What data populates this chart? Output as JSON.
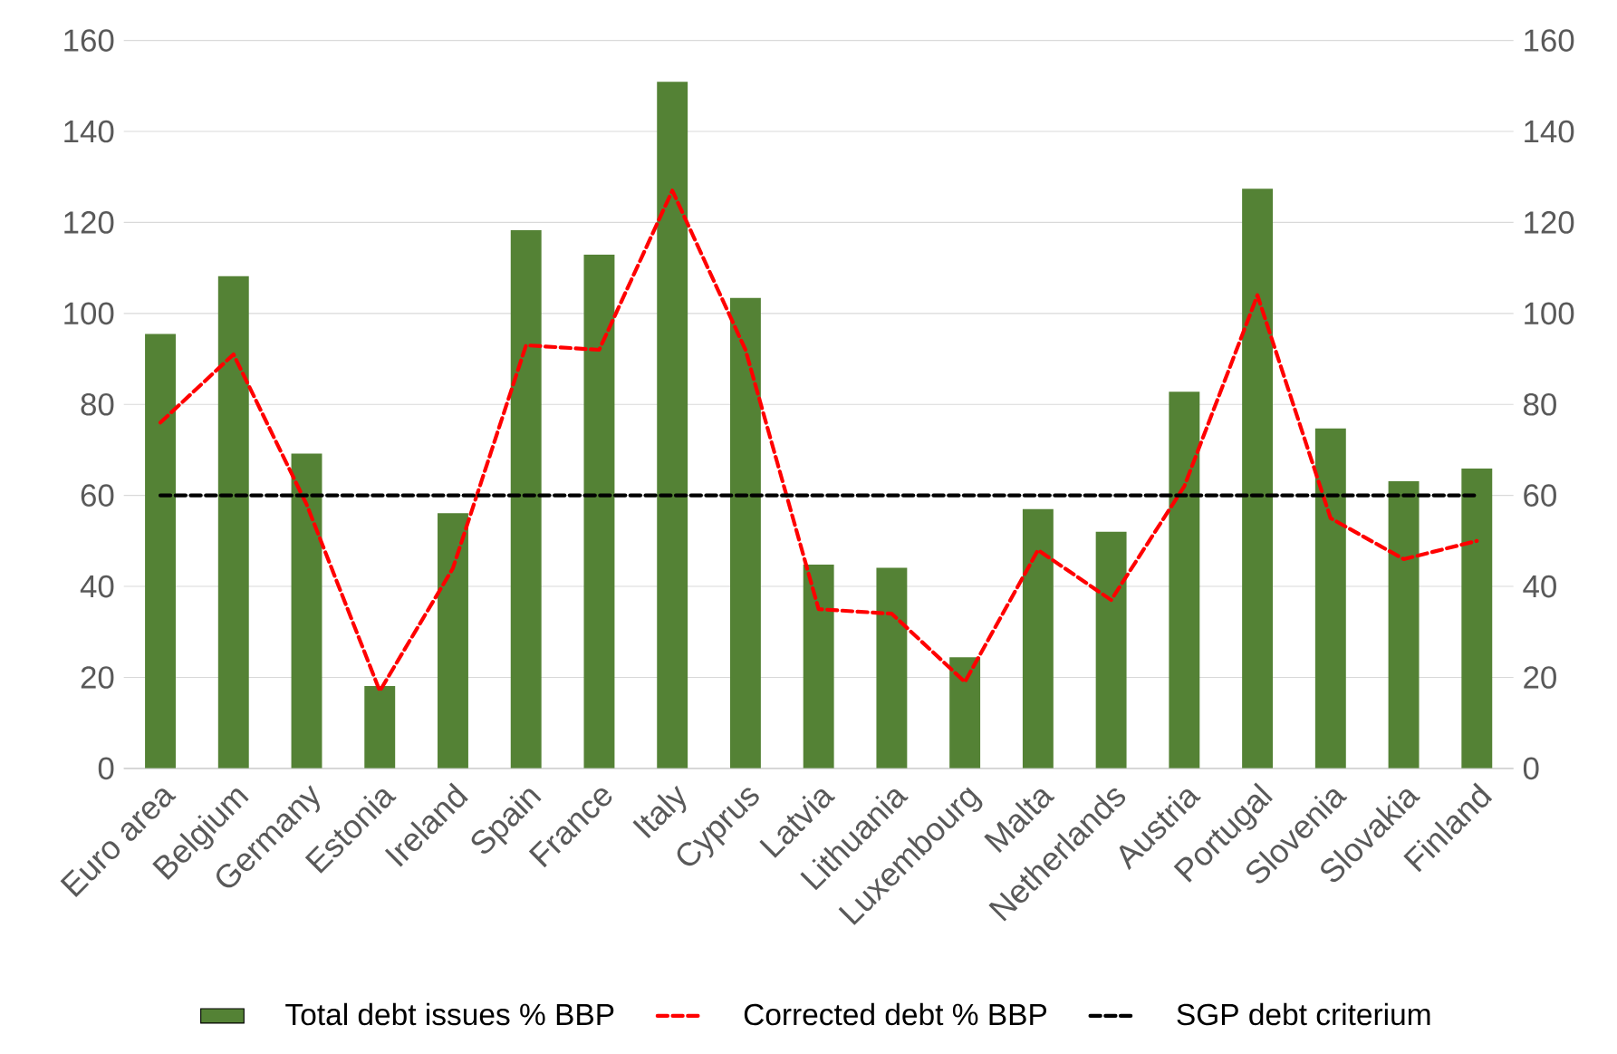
{
  "chart_data": {
    "type": "bar",
    "categories": [
      "Euro area",
      "Belgium",
      "Germany",
      "Estonia",
      "Ireland",
      "Spain",
      "France",
      "Italy",
      "Cyprus",
      "Latvia",
      "Lithuania",
      "Luxembourg",
      "Malta",
      "Netherlands",
      "Austria",
      "Portugal",
      "Slovenia",
      "Slovakia",
      "Finland"
    ],
    "series": [
      {
        "name": "Total debt issues % BBP",
        "color": "#548235",
        "values": [
          95.5,
          108.2,
          69.2,
          18.1,
          56.1,
          118.3,
          112.9,
          150.9,
          103.4,
          44.8,
          44.1,
          24.4,
          57,
          52,
          82.8,
          127.4,
          74.7,
          63.1,
          65.9
        ]
      },
      {
        "name": "Corrected debt % BBP",
        "type": "line",
        "color": "#ff0000",
        "line_style": "dashed",
        "values": [
          76,
          91,
          58,
          17,
          44,
          93,
          92,
          127,
          92,
          35,
          34,
          19,
          48,
          37,
          62,
          104,
          55,
          46,
          50
        ]
      },
      {
        "name": "SGP debt criterium",
        "type": "line",
        "color": "#000000",
        "line_style": "dashed",
        "values": [
          60,
          60,
          60,
          60,
          60,
          60,
          60,
          60,
          60,
          60,
          60,
          60,
          60,
          60,
          60,
          60,
          60,
          60,
          60
        ]
      }
    ],
    "ylim": [
      0,
      160
    ],
    "yticks": [
      0,
      20,
      40,
      60,
      80,
      100,
      120,
      140,
      160
    ],
    "y2lim": [
      0,
      160
    ],
    "y2ticks": [
      0,
      20,
      40,
      60,
      80,
      100,
      120,
      140,
      160
    ],
    "grid": "y",
    "legend": "bottom",
    "marker": "none"
  }
}
